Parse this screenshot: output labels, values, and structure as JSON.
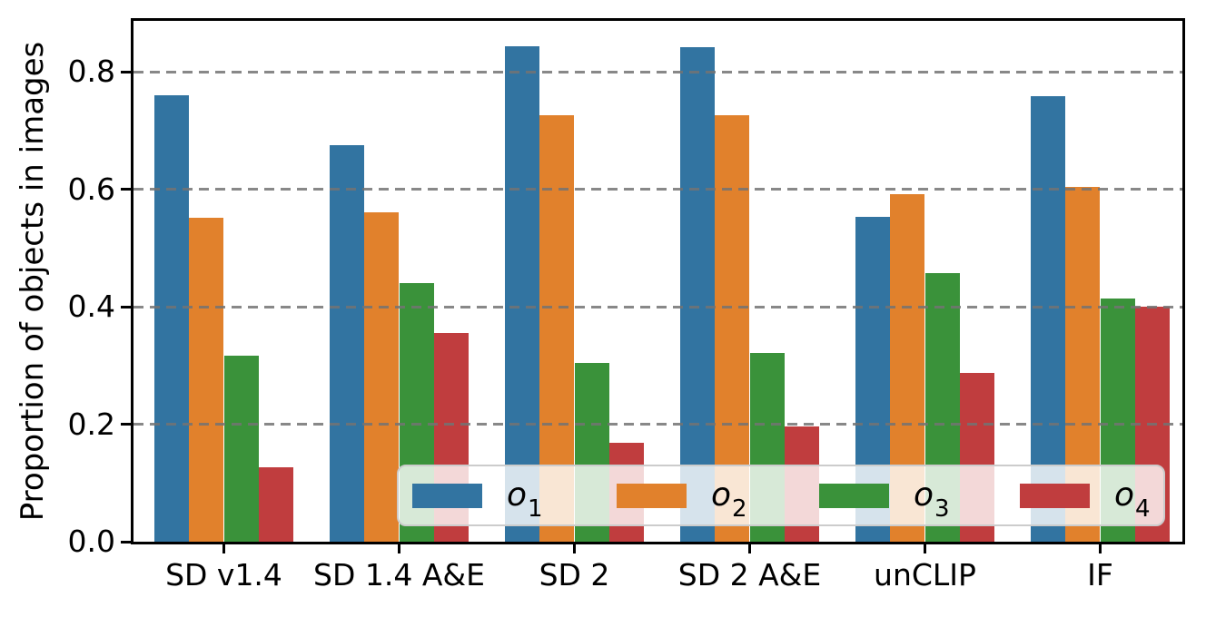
{
  "chart_data": {
    "type": "bar",
    "title": "",
    "ylabel": "Proportion of objects in images",
    "xlabel": "",
    "categories": [
      "SD v1.4",
      "SD 1.4 A&E",
      "SD 2",
      "SD 2 A&E",
      "unCLIP",
      "IF"
    ],
    "series": [
      {
        "name": "o_1",
        "legend": {
          "base": "o",
          "sub": "1"
        },
        "color": "#3274A1",
        "values": [
          0.76,
          0.675,
          0.843,
          0.842,
          0.553,
          0.758
        ]
      },
      {
        "name": "o_2",
        "legend": {
          "base": "o",
          "sub": "2"
        },
        "color": "#E1812C",
        "values": [
          0.551,
          0.561,
          0.727,
          0.727,
          0.592,
          0.604
        ]
      },
      {
        "name": "o_3",
        "legend": {
          "base": "o",
          "sub": "3"
        },
        "color": "#3A923A",
        "values": [
          0.317,
          0.44,
          0.305,
          0.321,
          0.458,
          0.414
        ]
      },
      {
        "name": "o_4",
        "legend": {
          "base": "o",
          "sub": "4"
        },
        "color": "#C03D3E",
        "values": [
          0.127,
          0.355,
          0.169,
          0.196,
          0.287,
          0.4
        ]
      }
    ],
    "yticks": [
      "0.0",
      "0.2",
      "0.4",
      "0.6",
      "0.8"
    ],
    "ytick_values": [
      0.0,
      0.2,
      0.4,
      0.6,
      0.8
    ],
    "ylim": [
      0,
      0.887
    ],
    "grid": {
      "axis": "y",
      "style": "dashed",
      "color": "#737373",
      "over_bars": true
    },
    "legend_layout": {
      "orientation": "horizontal",
      "position": "lower center",
      "background": "rgba(255,255,255,0.8)",
      "border_color": "#cccccc"
    },
    "axis_color": "#000000"
  }
}
